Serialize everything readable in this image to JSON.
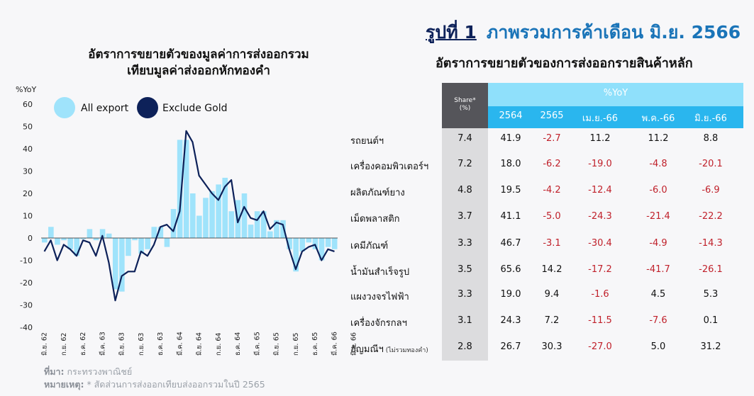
{
  "header": {
    "figure_label": "รูปที่ 1",
    "title": "ภาพรวมการค้าเดือน มิ.ย. 2566"
  },
  "left_title_line1": "อัตราการขยายตัวของมูลค่าการส่งออกรวม",
  "left_title_line2": "เทียบมูลค่าส่งออกหักทองคำ",
  "right_title": "อัตราการขยายตัวของการส่งออกรายสินค้าหลัก",
  "footnote_source_label": "ที่มา:",
  "footnote_source": "กระทรวงพาณิชย์",
  "footnote_note_label": "หมายเหตุ:",
  "footnote_note": "* สัดส่วนการส่งออกเทียบส่งออกรวมในปี 2565",
  "colors": {
    "bar": "#9fe3fb",
    "line": "#0d2159",
    "neg": "#c0212b",
    "accent": "#2ab6ee"
  },
  "chart_data": {
    "type": "bar",
    "ylabel": "%YoY",
    "ylim": [
      -40,
      60
    ],
    "yticks": [
      60,
      50,
      40,
      30,
      20,
      10,
      0,
      -10,
      -20,
      -30,
      -40
    ],
    "xtick_labels": [
      "มิ.ย. 62",
      "ก.ย. 62",
      "ธ.ค. 62",
      "มี.ค. 63",
      "มิ.ย. 63",
      "ก.ย. 63",
      "ธ.ค. 63",
      "มี.ค. 64",
      "มิ.ย. 64",
      "ก.ย. 64",
      "ธ.ค. 64",
      "มี.ค. 65",
      "มิ.ย. 65",
      "ก.ย. 65",
      "ธ.ค. 65",
      "มี.ค. 66",
      "มิ.ย. 66"
    ],
    "series": [
      {
        "name": "All export",
        "type": "bar",
        "values": [
          -2,
          5,
          -3,
          -1,
          -5,
          -8,
          0,
          4,
          -1,
          4,
          2,
          -23,
          -24,
          -8,
          -1,
          -7,
          -5,
          5,
          5,
          -4,
          13,
          44,
          44,
          20,
          10,
          18,
          21,
          24,
          27,
          12,
          17,
          20,
          6,
          12,
          12,
          3,
          8,
          8,
          -5,
          -15,
          -6,
          -2,
          -5,
          -10,
          -4,
          -5
        ]
      },
      {
        "name": "Exclude Gold",
        "type": "line",
        "values": [
          -6,
          -1,
          -10,
          -3,
          -5,
          -8,
          -1,
          -2,
          -8,
          1,
          -11,
          -28,
          -17,
          -15,
          -15,
          -6,
          -8,
          -3,
          5,
          6,
          3,
          12,
          48,
          43,
          28,
          24,
          20,
          17,
          23,
          26,
          7,
          14,
          9,
          8,
          12,
          4,
          7,
          6,
          -5,
          -14,
          -6,
          -4,
          -3,
          -10,
          -5,
          -6
        ]
      }
    ]
  },
  "table": {
    "share_header": "Share*\n(%)",
    "yoy_header": "%YoY",
    "columns": [
      "2564",
      "2565",
      "เม.ย.-66",
      "พ.ค.-66",
      "มิ.ย.-66"
    ],
    "rows": [
      {
        "label": "รถยนต์ฯ",
        "share": "7.4",
        "values": [
          "41.9",
          "-2.7",
          "11.2",
          "11.2",
          "8.8"
        ]
      },
      {
        "label": "เครื่องคอมพิวเตอร์ฯ",
        "share": "7.2",
        "values": [
          "18.0",
          "-6.2",
          "-19.0",
          "-4.8",
          "-20.1"
        ]
      },
      {
        "label": "ผลิตภัณฑ์ยาง",
        "share": "4.8",
        "values": [
          "19.5",
          "-4.2",
          "-12.4",
          "-6.0",
          "-6.9"
        ]
      },
      {
        "label": "เม็ดพลาสติก",
        "share": "3.7",
        "values": [
          "41.1",
          "-5.0",
          "-24.3",
          "-21.4",
          "-22.2"
        ]
      },
      {
        "label": "เคมีภัณฑ์",
        "share": "3.3",
        "values": [
          "46.7",
          "-3.1",
          "-30.4",
          "-4.9",
          "-14.3"
        ]
      },
      {
        "label": "น้ำมันสำเร็จรูป",
        "share": "3.5",
        "values": [
          "65.6",
          "14.2",
          "-17.2",
          "-41.7",
          "-26.1"
        ]
      },
      {
        "label": "แผงวงจรไฟฟ้า",
        "share": "3.3",
        "values": [
          "19.0",
          "9.4",
          "-1.6",
          "4.5",
          "5.3"
        ]
      },
      {
        "label": "เครื่องจักรกลฯ",
        "share": "3.1",
        "values": [
          "24.3",
          "7.2",
          "-11.5",
          "-7.6",
          "0.1"
        ]
      },
      {
        "label": "อัญมณีฯ",
        "label_note": "(ไม่รวมทองคำ)",
        "share": "2.8",
        "values": [
          "26.7",
          "30.3",
          "-27.0",
          "5.0",
          "31.2"
        ]
      }
    ]
  }
}
